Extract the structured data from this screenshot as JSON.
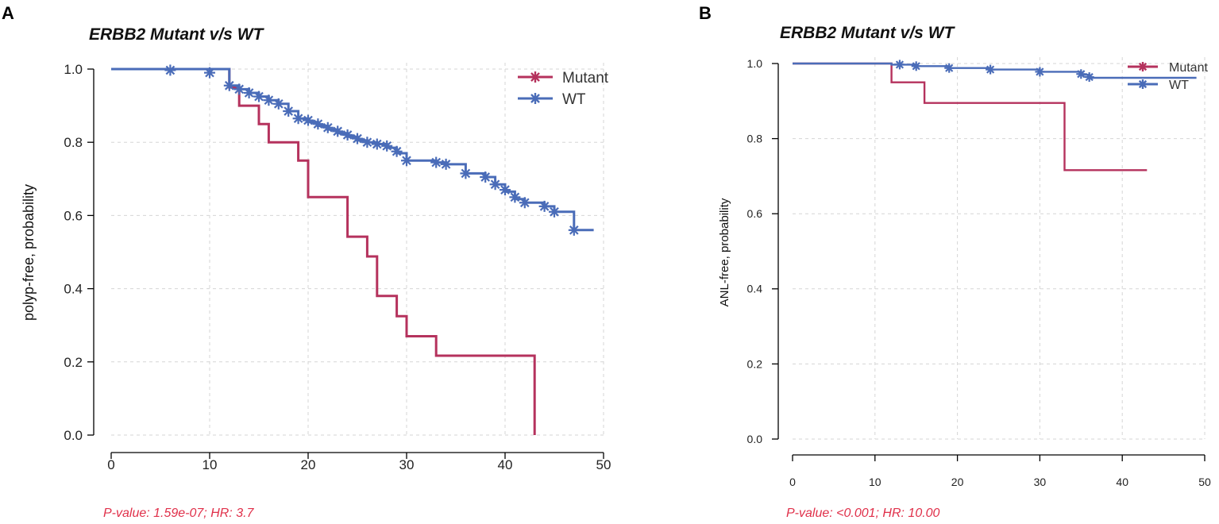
{
  "colors": {
    "mutant": "#b5325d",
    "wt": "#4a6cb8",
    "pvalue": "#e0304a"
  },
  "chart_data": [
    {
      "type": "line",
      "panel_label": "A",
      "title": "ERBB2 Mutant v/s WT",
      "xlabel": "",
      "ylabel": "polyp-free, probability",
      "xlim": [
        0,
        50
      ],
      "ylim": [
        0,
        1
      ],
      "xticks": [
        0,
        10,
        20,
        30,
        40,
        50
      ],
      "yticks": [
        0.0,
        0.2,
        0.4,
        0.6,
        0.8,
        1.0
      ],
      "xtick_labels": [
        "0",
        "10",
        "20",
        "30",
        "40",
        "50"
      ],
      "ytick_labels": [
        "0.0",
        "0.2",
        "0.4",
        "0.6",
        "0.8",
        "1.0"
      ],
      "legend": {
        "position": "top-right",
        "entries": [
          "Mutant",
          "WT"
        ]
      },
      "annotation": "P-value: 1.59e-07; HR: 3.7",
      "series": [
        {
          "name": "Mutant",
          "step_points": [
            [
              0,
              1.0
            ],
            [
              12,
              1.0
            ],
            [
              12,
              0.95
            ],
            [
              13,
              0.95
            ],
            [
              13,
              0.9
            ],
            [
              15,
              0.9
            ],
            [
              15,
              0.85
            ],
            [
              16,
              0.85
            ],
            [
              16,
              0.8
            ],
            [
              19,
              0.8
            ],
            [
              19,
              0.75
            ],
            [
              20,
              0.75
            ],
            [
              20,
              0.65
            ],
            [
              24,
              0.65
            ],
            [
              24,
              0.542
            ],
            [
              26,
              0.542
            ],
            [
              26,
              0.488
            ],
            [
              27,
              0.488
            ],
            [
              27,
              0.38
            ],
            [
              29,
              0.38
            ],
            [
              29,
              0.325
            ],
            [
              30,
              0.325
            ],
            [
              30,
              0.27
            ],
            [
              33,
              0.27
            ],
            [
              33,
              0.217
            ],
            [
              43,
              0.217
            ],
            [
              43,
              0.0
            ]
          ],
          "censored": []
        },
        {
          "name": "WT",
          "step_points": [
            [
              0,
              1.0
            ],
            [
              12,
              1.0
            ],
            [
              12,
              0.955
            ],
            [
              13,
              0.955
            ],
            [
              13,
              0.945
            ],
            [
              14,
              0.945
            ],
            [
              14,
              0.935
            ],
            [
              15,
              0.935
            ],
            [
              15,
              0.925
            ],
            [
              16,
              0.925
            ],
            [
              16,
              0.915
            ],
            [
              17,
              0.915
            ],
            [
              17,
              0.905
            ],
            [
              18,
              0.905
            ],
            [
              18,
              0.885
            ],
            [
              19,
              0.885
            ],
            [
              19,
              0.865
            ],
            [
              20,
              0.865
            ],
            [
              20,
              0.855
            ],
            [
              21,
              0.855
            ],
            [
              21,
              0.845
            ],
            [
              22,
              0.845
            ],
            [
              22,
              0.835
            ],
            [
              23,
              0.835
            ],
            [
              23,
              0.825
            ],
            [
              24,
              0.825
            ],
            [
              24,
              0.815
            ],
            [
              25,
              0.815
            ],
            [
              25,
              0.805
            ],
            [
              26,
              0.805
            ],
            [
              26,
              0.8
            ],
            [
              27,
              0.8
            ],
            [
              27,
              0.795
            ],
            [
              28,
              0.795
            ],
            [
              28,
              0.785
            ],
            [
              29,
              0.785
            ],
            [
              29,
              0.77
            ],
            [
              30,
              0.77
            ],
            [
              30,
              0.75
            ],
            [
              33,
              0.75
            ],
            [
              33,
              0.745
            ],
            [
              34,
              0.745
            ],
            [
              34,
              0.74
            ],
            [
              36,
              0.74
            ],
            [
              36,
              0.715
            ],
            [
              38,
              0.715
            ],
            [
              38,
              0.705
            ],
            [
              39,
              0.705
            ],
            [
              39,
              0.685
            ],
            [
              40,
              0.685
            ],
            [
              40,
              0.665
            ],
            [
              41,
              0.665
            ],
            [
              41,
              0.645
            ],
            [
              42,
              0.645
            ],
            [
              42,
              0.635
            ],
            [
              44,
              0.635
            ],
            [
              44,
              0.625
            ],
            [
              45,
              0.625
            ],
            [
              45,
              0.61
            ],
            [
              47,
              0.61
            ],
            [
              47,
              0.56
            ],
            [
              49,
              0.56
            ]
          ],
          "censored": [
            [
              6,
              0.997
            ],
            [
              10,
              0.99
            ],
            [
              12,
              0.955
            ],
            [
              13,
              0.945
            ],
            [
              14,
              0.935
            ],
            [
              15,
              0.925
            ],
            [
              16,
              0.915
            ],
            [
              17,
              0.905
            ],
            [
              18,
              0.885
            ],
            [
              19,
              0.865
            ],
            [
              20,
              0.86
            ],
            [
              21,
              0.85
            ],
            [
              22,
              0.84
            ],
            [
              23,
              0.83
            ],
            [
              24,
              0.82
            ],
            [
              25,
              0.81
            ],
            [
              26,
              0.8
            ],
            [
              27,
              0.795
            ],
            [
              28,
              0.79
            ],
            [
              29,
              0.775
            ],
            [
              30,
              0.75
            ],
            [
              33,
              0.745
            ],
            [
              34,
              0.74
            ],
            [
              36,
              0.715
            ],
            [
              38,
              0.705
            ],
            [
              39,
              0.685
            ],
            [
              40,
              0.67
            ],
            [
              41,
              0.65
            ],
            [
              42,
              0.635
            ],
            [
              44,
              0.625
            ],
            [
              45,
              0.61
            ],
            [
              47,
              0.56
            ]
          ]
        }
      ]
    },
    {
      "type": "line",
      "panel_label": "B",
      "title": "ERBB2 Mutant v/s WT",
      "xlabel": "",
      "ylabel": "ANL-free, probability",
      "xlim": [
        0,
        50
      ],
      "ylim": [
        0,
        1
      ],
      "xticks": [
        0,
        10,
        20,
        30,
        40,
        50
      ],
      "yticks": [
        0.0,
        0.2,
        0.4,
        0.6,
        0.8,
        1.0
      ],
      "xtick_labels": [
        "0",
        "10",
        "20",
        "30",
        "40",
        "50"
      ],
      "ytick_labels": [
        "0.0",
        "0.2",
        "0.4",
        "0.6",
        "0.8",
        "1.0"
      ],
      "legend": {
        "position": "top-right",
        "entries": [
          "Mutant",
          "WT"
        ]
      },
      "annotation": "P-value: <0.001; HR: 10.00",
      "series": [
        {
          "name": "Mutant",
          "step_points": [
            [
              0,
              1.0
            ],
            [
              12,
              1.0
            ],
            [
              12,
              0.95
            ],
            [
              16,
              0.95
            ],
            [
              16,
              0.895
            ],
            [
              33,
              0.895
            ],
            [
              33,
              0.716
            ],
            [
              43,
              0.716
            ]
          ],
          "censored": []
        },
        {
          "name": "WT",
          "step_points": [
            [
              0,
              1.0
            ],
            [
              12,
              1.0
            ],
            [
              12,
              0.997
            ],
            [
              15,
              0.997
            ],
            [
              15,
              0.993
            ],
            [
              19,
              0.993
            ],
            [
              19,
              0.988
            ],
            [
              24,
              0.988
            ],
            [
              24,
              0.984
            ],
            [
              30,
              0.984
            ],
            [
              30,
              0.978
            ],
            [
              35,
              0.978
            ],
            [
              35,
              0.97
            ],
            [
              36,
              0.97
            ],
            [
              36,
              0.962
            ],
            [
              49,
              0.962
            ]
          ],
          "censored": [
            [
              13,
              0.997
            ],
            [
              15,
              0.993
            ],
            [
              19,
              0.988
            ],
            [
              24,
              0.984
            ],
            [
              30,
              0.978
            ],
            [
              35,
              0.972
            ],
            [
              36,
              0.964
            ]
          ]
        }
      ]
    }
  ]
}
